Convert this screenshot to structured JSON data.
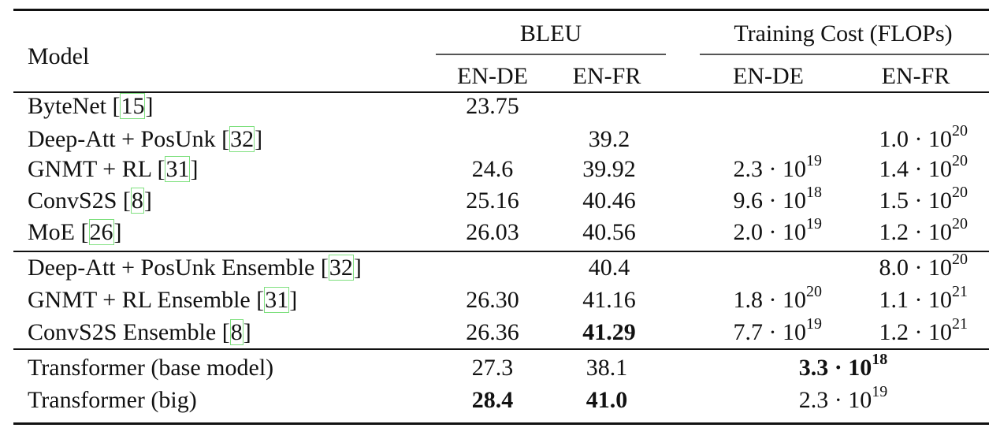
{
  "header": {
    "model": "Model",
    "bleu": "BLEU",
    "cost": "Training Cost (FLOPs)",
    "sub": [
      "EN-DE",
      "EN-FR",
      "EN-DE",
      "EN-FR"
    ]
  },
  "rows": [
    {
      "model": "ByteNet ",
      "cite": "15",
      "bleu_de": "23.75",
      "bleu_fr": "",
      "cost_de": "",
      "cost_de_exp": "",
      "cost_fr": "",
      "cost_fr_exp": ""
    },
    {
      "model": "Deep-Att + PosUnk ",
      "cite": "32",
      "bleu_de": "",
      "bleu_fr": "39.2",
      "cost_de": "",
      "cost_de_exp": "",
      "cost_fr": "1.0 · 10",
      "cost_fr_exp": "20"
    },
    {
      "model": "GNMT + RL ",
      "cite": "31",
      "bleu_de": "24.6",
      "bleu_fr": "39.92",
      "cost_de": "2.3 · 10",
      "cost_de_exp": "19",
      "cost_fr": "1.4 · 10",
      "cost_fr_exp": "20"
    },
    {
      "model": "ConvS2S ",
      "cite": "8",
      "bleu_de": "25.16",
      "bleu_fr": "40.46",
      "cost_de": "9.6 · 10",
      "cost_de_exp": "18",
      "cost_fr": "1.5 · 10",
      "cost_fr_exp": "20"
    },
    {
      "model": "MoE ",
      "cite": "26",
      "bleu_de": "26.03",
      "bleu_fr": "40.56",
      "cost_de": "2.0 · 10",
      "cost_de_exp": "19",
      "cost_fr": "1.2 · 10",
      "cost_fr_exp": "20"
    },
    {
      "model": "Deep-Att + PosUnk Ensemble ",
      "cite": "32",
      "bleu_de": "",
      "bleu_fr": "40.4",
      "cost_de": "",
      "cost_de_exp": "",
      "cost_fr": "8.0 · 10",
      "cost_fr_exp": "20"
    },
    {
      "model": "GNMT + RL Ensemble ",
      "cite": "31",
      "bleu_de": "26.30",
      "bleu_fr": "41.16",
      "cost_de": "1.8 · 10",
      "cost_de_exp": "20",
      "cost_fr": "1.1 · 10",
      "cost_fr_exp": "21"
    },
    {
      "model": "ConvS2S Ensemble ",
      "cite": "8",
      "bleu_de": "26.36",
      "bleu_fr": "41.29",
      "cost_de": "7.7 · 10",
      "cost_de_exp": "19",
      "cost_fr": "1.2 · 10",
      "cost_fr_exp": "21"
    }
  ],
  "transformer": [
    {
      "model": "Transformer (base model)",
      "bleu_de": "27.3",
      "bleu_fr": "38.1",
      "cost": "3.3 · 10",
      "cost_exp": "18"
    },
    {
      "model": "Transformer (big)",
      "bleu_de": "28.4",
      "bleu_fr": "41.0",
      "cost": "2.3 · 10",
      "cost_exp": "19"
    }
  ]
}
